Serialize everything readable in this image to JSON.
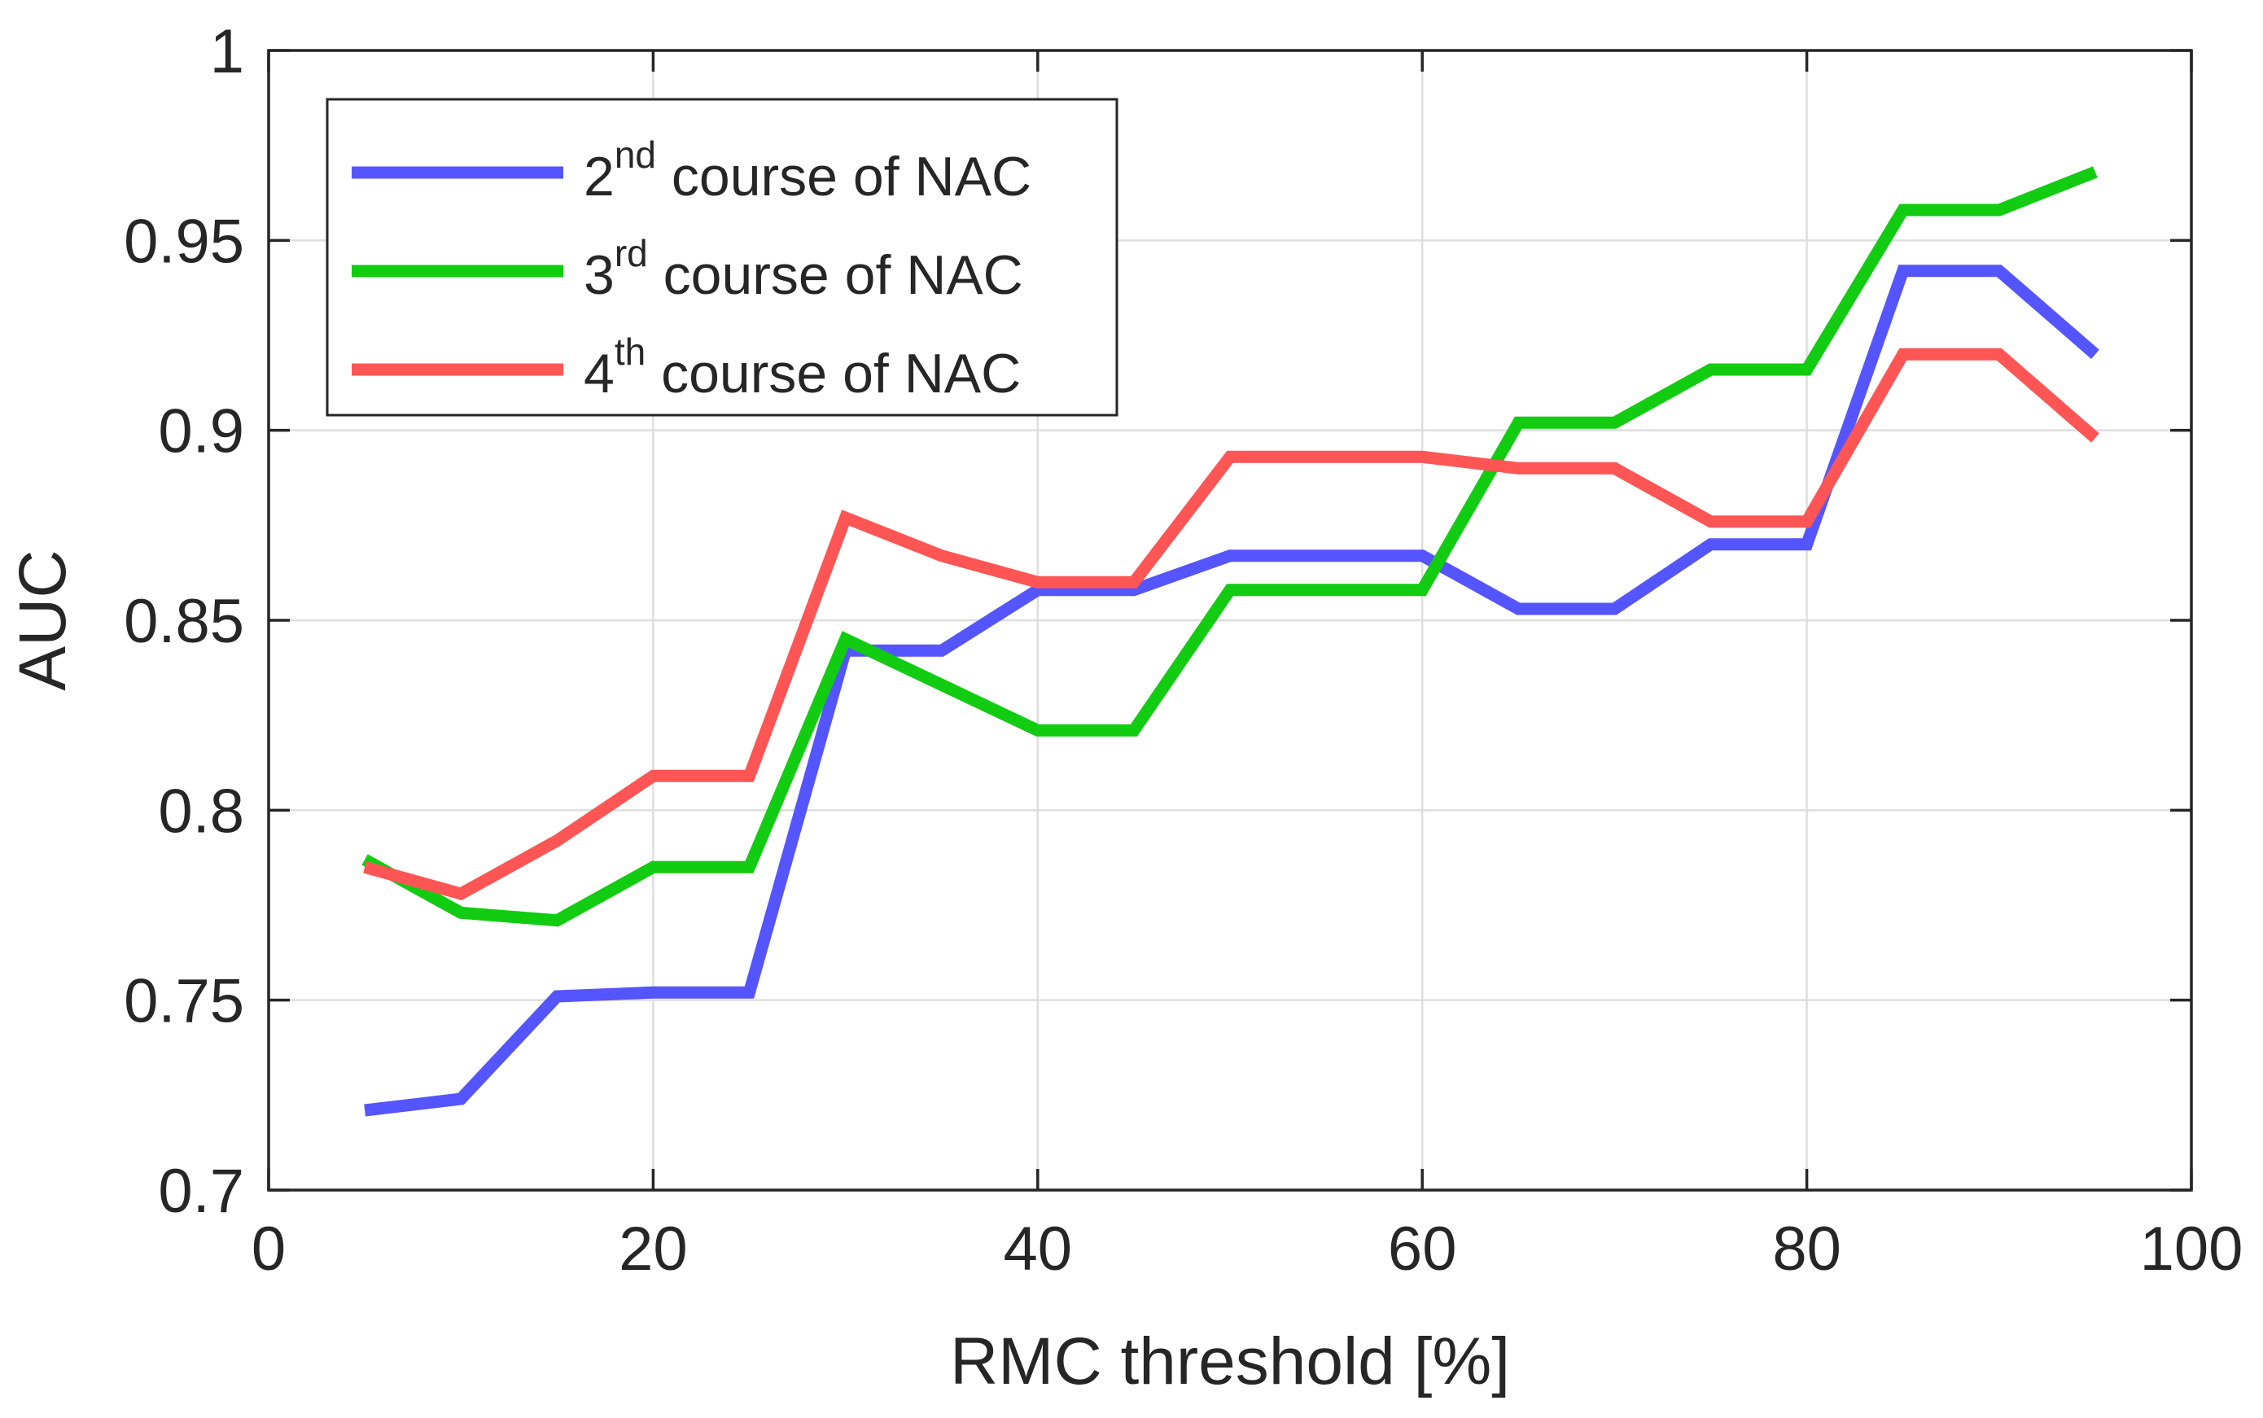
{
  "chart_data": {
    "type": "line",
    "title": "",
    "xlabel": "RMC threshold [%]",
    "ylabel": "AUC",
    "xlim": [
      0,
      100
    ],
    "ylim": [
      0.7,
      1.0
    ],
    "xticks": [
      0,
      20,
      40,
      60,
      80,
      100
    ],
    "xtick_labels": [
      "0",
      "20",
      "40",
      "60",
      "80",
      "100"
    ],
    "yticks": [
      0.7,
      0.75,
      0.8,
      0.85,
      0.9,
      0.95,
      1.0
    ],
    "ytick_labels": [
      "0.7",
      "0.75",
      "0.8",
      "0.85",
      "0.9",
      "0.95",
      "1"
    ],
    "grid": true,
    "legend_position": "top-left",
    "x": [
      5,
      10,
      15,
      20,
      25,
      30,
      35,
      40,
      45,
      50,
      55,
      60,
      65,
      70,
      75,
      80,
      85,
      90,
      95
    ],
    "series": [
      {
        "name": "2nd course of NAC",
        "name_main": "2",
        "name_sup": "nd",
        "name_rest": " course of NAC",
        "color": "#5555ff",
        "values": [
          0.721,
          0.724,
          0.751,
          0.752,
          0.752,
          0.842,
          0.842,
          0.858,
          0.858,
          0.867,
          0.867,
          0.867,
          0.853,
          0.853,
          0.87,
          0.87,
          0.942,
          0.942,
          0.92
        ]
      },
      {
        "name": "3rd course of NAC",
        "name_main": "3",
        "name_sup": "rd",
        "name_rest": " course of NAC",
        "color": "#11cc11",
        "values": [
          0.787,
          0.773,
          0.771,
          0.785,
          0.785,
          0.845,
          0.833,
          0.821,
          0.821,
          0.858,
          0.858,
          0.858,
          0.902,
          0.902,
          0.916,
          0.916,
          0.958,
          0.958,
          0.968
        ]
      },
      {
        "name": "4th course of NAC",
        "name_main": "4",
        "name_sup": "th",
        "name_rest": " course of NAC",
        "color": "#ff5555",
        "values": [
          0.785,
          0.778,
          0.792,
          0.809,
          0.809,
          0.877,
          0.867,
          0.86,
          0.86,
          0.893,
          0.893,
          0.893,
          0.89,
          0.89,
          0.876,
          0.876,
          0.92,
          0.92,
          0.898
        ]
      }
    ]
  }
}
